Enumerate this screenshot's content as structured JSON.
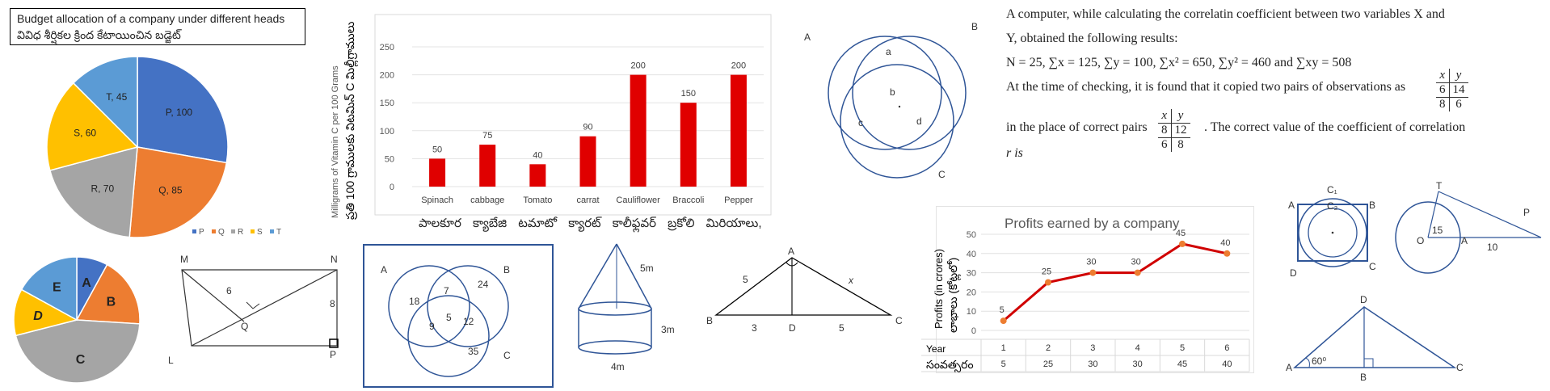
{
  "pie1": {
    "title_en": "Budget allocation of a company under different heads",
    "title_te": "వివిధ శీర్షికల క్రింద కేటాయించిన బడ్జెట్",
    "slices": [
      {
        "label": "P, 100",
        "value": 100,
        "color": "#4472c4"
      },
      {
        "label": "Q, 85",
        "value": 85,
        "color": "#ed7d31"
      },
      {
        "label": "R, 70",
        "value": 70,
        "color": "#a5a5a5"
      },
      {
        "label": "S, 60",
        "value": 60,
        "color": "#ffc000"
      },
      {
        "label": "T, 45",
        "value": 45,
        "color": "#5b9bd5"
      }
    ],
    "legend": [
      "P",
      "Q",
      "R",
      "S",
      "T"
    ]
  },
  "chart_data": [
    {
      "type": "bar",
      "categories": [
        "Spinach",
        "cabbage",
        "Tomato",
        "carrat",
        "Cauliflower",
        "Braccoli",
        "Pepper"
      ],
      "values": [
        50,
        75,
        40,
        90,
        200,
        150,
        200
      ],
      "ylabel": "Milligrams of Vitamin C per 100 Grams",
      "ylabel_te": "ప్రతి 100 గ్రాములకు విటమిన్ C మిల్లీగ్రాములు",
      "categories_te": "పాలకూర క్యాబేజి టమాటో క్యారట్ కాలీఫ్లవర్ బ్రకోలి మిరియాలు,",
      "yticks": [
        0,
        50,
        100,
        150,
        200,
        250
      ],
      "ylim": [
        0,
        250
      ],
      "color": "#e00000"
    },
    {
      "type": "line",
      "title": "Profits earned by a company",
      "ylabel": "Profits (in crores)",
      "ylabel_te": "లాభాలు (కోట్లలో)",
      "x": [
        1,
        2,
        3,
        4,
        5,
        6
      ],
      "y": [
        5,
        25,
        30,
        30,
        45,
        40
      ],
      "yticks": [
        0,
        10,
        20,
        30,
        40,
        50
      ],
      "ylim": [
        0,
        50
      ],
      "table_header_en": "Year",
      "table_header_te": "సంవత్సరం",
      "color": "#d00000"
    }
  ],
  "venn1": {
    "labels": [
      "A",
      "B",
      "C",
      "a",
      "b",
      "c",
      "d"
    ]
  },
  "question": {
    "line1": "A computer, while calculating the correlatin coefficient  between two variables X and",
    "line2": "Y, obtained the following results:",
    "line3": "N = 25, ∑x = 125,   ∑y = 100,   ∑x² = 650,   ∑y² = 460   and ∑xy = 508",
    "line4": "At the time of checking, it is found that it copied two pairs of observations as",
    "line5a": "in the place of correct pairs",
    "line5b": ". The correct value of the coefficient of correlation",
    "line6": "r is",
    "col_x": "x",
    "col_y": "y",
    "wrong": [
      [
        "6",
        "14"
      ],
      [
        "8",
        "6"
      ]
    ],
    "right": [
      [
        "8",
        "12"
      ],
      [
        "6",
        "8"
      ]
    ]
  },
  "pie2": {
    "slices": [
      {
        "label": "A",
        "value": 8,
        "color": "#4472c4"
      },
      {
        "label": "B",
        "value": 18,
        "color": "#ed7d31"
      },
      {
        "label": "C",
        "value": 45,
        "color": "#a5a5a5"
      },
      {
        "label": "D",
        "value": 12,
        "color": "#ffc000"
      },
      {
        "label": "E",
        "value": 17,
        "color": "#5b9bd5"
      }
    ]
  },
  "rect": {
    "labels": [
      "M",
      "N",
      "L",
      "P",
      "Q",
      "6",
      "8"
    ]
  },
  "venn2": {
    "labels": [
      "A",
      "B",
      "C",
      "18",
      "7",
      "24",
      "9",
      "5",
      "12",
      "35"
    ]
  },
  "cone": {
    "labels": [
      "5m",
      "3m",
      "4m"
    ]
  },
  "triangle": {
    "labels": [
      "A",
      "B",
      "C",
      "D",
      "5",
      "x",
      "3",
      "5"
    ]
  },
  "square_circle": {
    "labels": [
      "A",
      "B",
      "C",
      "D",
      "C₁",
      "C₂"
    ]
  },
  "tangent": {
    "labels": [
      "T",
      "P",
      "O",
      "A",
      "15",
      "10"
    ]
  },
  "tri60": {
    "labels": [
      "D",
      "A",
      "B",
      "C",
      "60⁰"
    ]
  }
}
